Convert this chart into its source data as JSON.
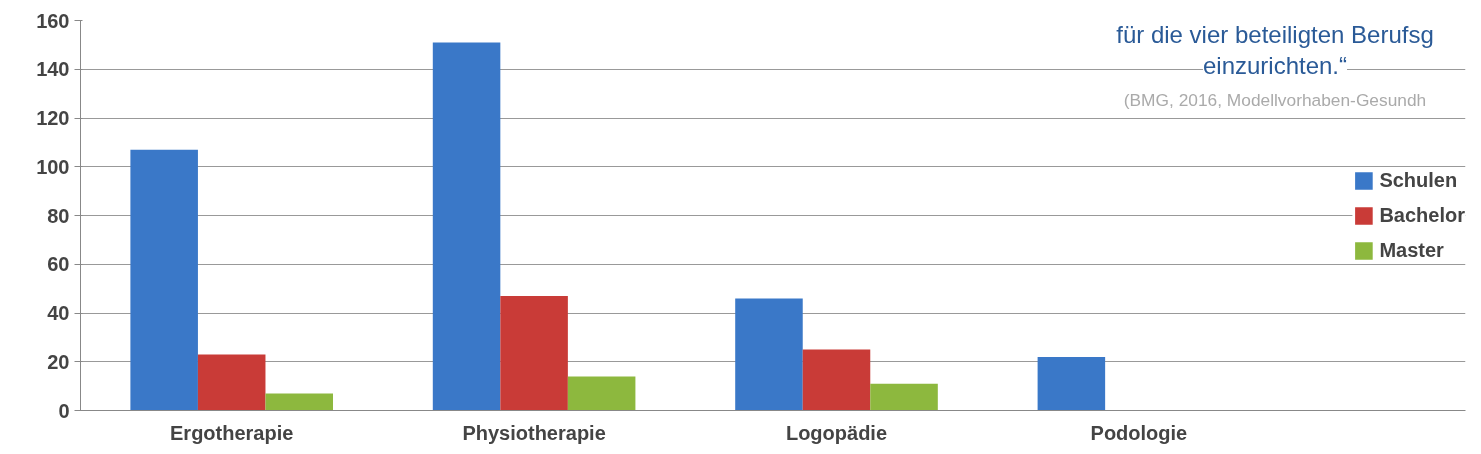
{
  "chart_data": {
    "type": "bar",
    "categories": [
      "Ergotherapie",
      "Physiotherapie",
      "Logopädie",
      "Podologie"
    ],
    "series": [
      {
        "name": "Schulen",
        "color": "#3a78c8",
        "values": [
          107,
          151,
          46,
          22
        ]
      },
      {
        "name": "Bachelor",
        "color": "#c93b37",
        "values": [
          23,
          47,
          25,
          null
        ]
      },
      {
        "name": "Master",
        "color": "#8db83e",
        "values": [
          7,
          14,
          11,
          null
        ]
      }
    ],
    "ylim": [
      0,
      160
    ],
    "yticks": [
      0,
      20,
      40,
      60,
      80,
      100,
      120,
      140,
      160
    ],
    "grid": "y",
    "legend": "right",
    "annotations": [
      "für die vier beteiligten Berufsg",
      "einzurichten.“",
      "(BMG, 2016, Modellvorhaben-Gesundh"
    ]
  }
}
